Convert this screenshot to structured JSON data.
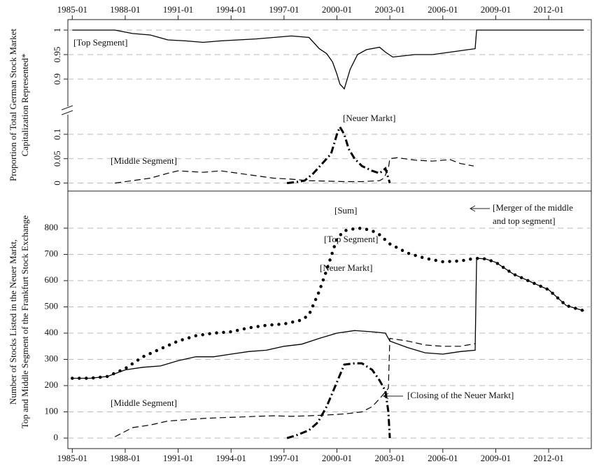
{
  "chart_data": [
    {
      "type": "line",
      "ylabel": [
        "Proportion of Total German Stock Market",
        "Capitalization Represented*"
      ],
      "xlim": [
        "1984-10",
        "2014-06"
      ],
      "ylim": [
        0.86,
        1.02
      ],
      "yticks": [
        0.9,
        0.95,
        1
      ],
      "grid": true,
      "xticks": [
        "1985-01",
        "1988-01",
        "1991-01",
        "1994-01",
        "1997-01",
        "2000-01",
        "2003-01",
        "2006-01",
        "2009-01",
        "2012-01"
      ],
      "annotations": [
        "[Top Segment]"
      ],
      "series": [
        {
          "name": "Top Segment",
          "color": "#000000",
          "style": "solid",
          "x": [
            "1985-01",
            "1987-06",
            "1988-06",
            "1989-06",
            "1990-06",
            "1991-06",
            "1992-06",
            "1993-06",
            "1994-06",
            "1995-06",
            "1996-06",
            "1997-06",
            "1998-06",
            "1999-01",
            "1999-06",
            "1999-10",
            "2000-01",
            "2000-03",
            "2000-06",
            "2000-10",
            "2001-03",
            "2001-09",
            "2002-06",
            "2002-10",
            "2003-03",
            "2004-06",
            "2005-06",
            "2006-06",
            "2007-06",
            "2007-11",
            "2007-12",
            "2014-01"
          ],
          "values": [
            1,
            1,
            0.993,
            0.99,
            0.98,
            0.978,
            0.975,
            0.978,
            0.98,
            0.982,
            0.985,
            0.988,
            0.985,
            0.962,
            0.952,
            0.935,
            0.91,
            0.89,
            0.88,
            0.92,
            0.95,
            0.96,
            0.965,
            0.955,
            0.945,
            0.95,
            0.95,
            0.955,
            0.96,
            0.962,
            1,
            1
          ]
        }
      ]
    },
    {
      "type": "line",
      "xlim": [
        "1984-10",
        "2014-06"
      ],
      "ylim": [
        -0.015,
        0.13
      ],
      "yticks": [
        0,
        0.05,
        0.1
      ],
      "grid": true,
      "annotations": [
        "[Neuer Markt]",
        "[Middle Segment]"
      ],
      "series": [
        {
          "name": "Middle Segment",
          "color": "#000000",
          "style": "dashed",
          "x": [
            "1987-06",
            "1988-06",
            "1989-06",
            "1990-06",
            "1991-01",
            "1992-06",
            "1993-06",
            "1994-06",
            "1995-06",
            "1996-06",
            "1997-06",
            "1998-06",
            "1999-06",
            "2000-06",
            "2001-06",
            "2002-06",
            "2002-09",
            "2002-12",
            "2003-01",
            "2003-06",
            "2004-06",
            "2005-06",
            "2006-06",
            "2007-01",
            "2007-10"
          ],
          "values": [
            0,
            0.005,
            0.01,
            0.02,
            0.025,
            0.022,
            0.025,
            0.02,
            0.015,
            0.01,
            0.008,
            0.005,
            0.004,
            0.003,
            0.003,
            0.005,
            0.01,
            0.03,
            0.05,
            0.052,
            0.047,
            0.045,
            0.048,
            0.04,
            0.035
          ]
        },
        {
          "name": "Neuer Markt",
          "color": "#000000",
          "style": "dashdot",
          "x": [
            "1997-03",
            "1997-09",
            "1998-03",
            "1998-09",
            "1999-03",
            "1999-09",
            "2000-01",
            "2000-03",
            "2000-06",
            "2000-09",
            "2001-01",
            "2001-06",
            "2002-01",
            "2002-06",
            "2002-10",
            "2003-01"
          ],
          "values": [
            0,
            0.002,
            0.005,
            0.02,
            0.04,
            0.06,
            0.1,
            0.115,
            0.1,
            0.07,
            0.05,
            0.035,
            0.025,
            0.02,
            0.03,
            0
          ]
        }
      ]
    },
    {
      "type": "line",
      "ylabel": [
        "Number of Stocks Listed in the Neuer Markt,",
        "Top and Middle Segment of the Frankfurt Stock Exchange"
      ],
      "xlim": [
        "1984-10",
        "2014-06"
      ],
      "ylim": [
        -40,
        920
      ],
      "yticks": [
        0,
        100,
        200,
        300,
        400,
        500,
        600,
        700,
        800
      ],
      "grid": true,
      "xticks": [
        "1985-01",
        "1988-01",
        "1991-01",
        "1994-01",
        "1997-01",
        "2000-01",
        "2003-01",
        "2006-01",
        "2009-01",
        "2012-01"
      ],
      "annotations": [
        "[Sum]",
        "[Top Segment]",
        "[Neuer Markt]",
        "[Middle Segment]",
        "[Closing of the Neuer Markt]",
        "[Merger of the middle",
        "and top segment]"
      ],
      "series": [
        {
          "name": "Top Segment",
          "color": "#000000",
          "style": "solid",
          "x": [
            "1985-01",
            "1986-01",
            "1987-01",
            "1988-01",
            "1989-01",
            "1990-01",
            "1991-01",
            "1992-01",
            "1993-01",
            "1994-01",
            "1995-01",
            "1996-01",
            "1997-01",
            "1998-01",
            "1999-01",
            "2000-01",
            "2001-01",
            "2002-01",
            "2002-10",
            "2003-01",
            "2004-01",
            "2005-01",
            "2006-01",
            "2007-01",
            "2007-11",
            "2007-12",
            "2008-06",
            "2009-01",
            "2010-01",
            "2011-01",
            "2012-01",
            "2013-01",
            "2014-01"
          ],
          "values": [
            228,
            228,
            235,
            260,
            270,
            275,
            295,
            310,
            310,
            320,
            330,
            335,
            350,
            358,
            380,
            400,
            410,
            405,
            400,
            370,
            345,
            325,
            320,
            330,
            335,
            685,
            683,
            670,
            625,
            595,
            565,
            505,
            485
          ]
        },
        {
          "name": "Middle Segment",
          "color": "#000000",
          "style": "dashed",
          "x": [
            "1987-06",
            "1988-06",
            "1989-06",
            "1990-06",
            "1991-06",
            "1992-06",
            "1993-06",
            "1994-06",
            "1995-06",
            "1996-06",
            "1997-06",
            "1998-06",
            "1999-06",
            "2000-06",
            "2001-06",
            "2002-01",
            "2002-06",
            "2002-12",
            "2003-01",
            "2004-01",
            "2005-01",
            "2006-01",
            "2007-01",
            "2007-11"
          ],
          "values": [
            5,
            40,
            50,
            65,
            70,
            75,
            78,
            80,
            83,
            85,
            83,
            85,
            88,
            92,
            100,
            120,
            150,
            190,
            380,
            370,
            355,
            350,
            350,
            360
          ]
        },
        {
          "name": "Neuer Markt",
          "color": "#000000",
          "style": "dashdot",
          "x": [
            "1997-03",
            "1997-09",
            "1998-06",
            "1998-12",
            "1999-06",
            "1999-12",
            "2000-06",
            "2001-01",
            "2001-06",
            "2002-01",
            "2002-06",
            "2002-10",
            "2002-12",
            "2003-01"
          ],
          "values": [
            0,
            10,
            30,
            60,
            120,
            200,
            280,
            285,
            285,
            260,
            220,
            180,
            100,
            0
          ]
        },
        {
          "name": "Sum",
          "color": "#000000",
          "style": "dotted",
          "x": [
            "1985-01",
            "1986-01",
            "1987-01",
            "1988-01",
            "1989-01",
            "1990-01",
            "1991-01",
            "1992-01",
            "1993-01",
            "1994-01",
            "1995-01",
            "1996-01",
            "1997-01",
            "1998-01",
            "1998-06",
            "1999-01",
            "1999-06",
            "2000-01",
            "2000-06",
            "2001-01",
            "2001-06",
            "2002-01",
            "2002-06",
            "2003-01",
            "2004-01",
            "2005-01",
            "2006-01",
            "2007-01",
            "2007-11",
            "2008-06",
            "2009-01",
            "2010-01",
            "2011-01",
            "2012-01",
            "2013-01",
            "2014-01"
          ],
          "values": [
            228,
            228,
            235,
            265,
            310,
            340,
            370,
            390,
            400,
            405,
            420,
            430,
            435,
            450,
            470,
            560,
            640,
            760,
            790,
            798,
            800,
            790,
            775,
            740,
            705,
            685,
            672,
            675,
            685,
            683,
            670,
            625,
            595,
            565,
            505,
            485
          ]
        }
      ]
    }
  ]
}
